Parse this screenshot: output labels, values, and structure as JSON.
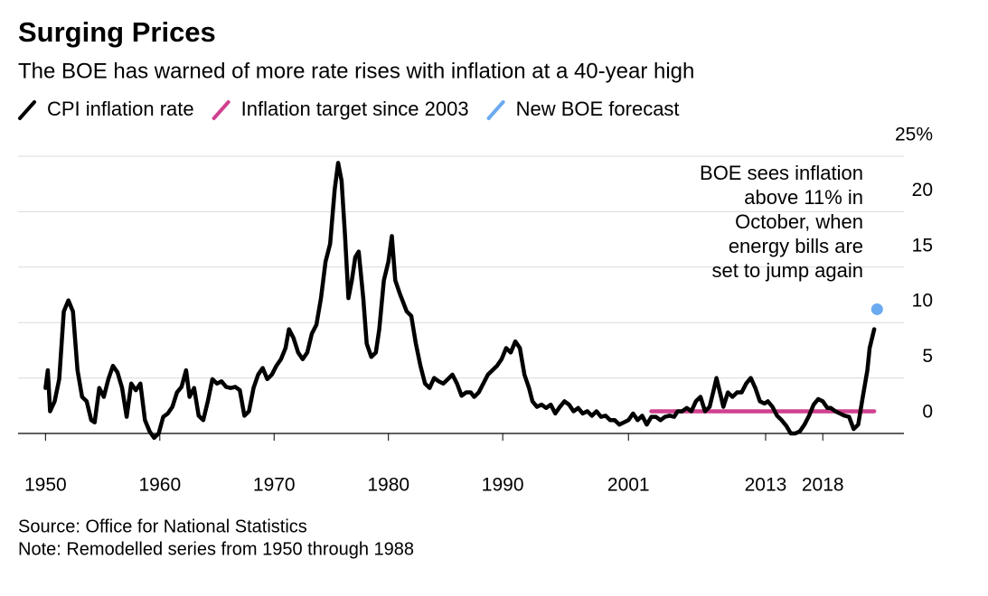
{
  "chart_data": {
    "type": "line",
    "title": "Surging Prices",
    "subtitle": "The BOE has warned of more rate rises with inflation at a 40-year high",
    "annotation": [
      "BOE sees inflation",
      "above 11% in",
      "October, when",
      "energy bills are",
      "set to jump again"
    ],
    "source": "Source: Office for National Statistics",
    "note": "Note: Remodelled series from 1950 through 1988",
    "xlim": [
      1947.6,
      2025.1
    ],
    "xticks": [
      1950,
      1960,
      1970,
      1980,
      1990,
      2001,
      2013,
      2018
    ],
    "ylim": [
      -1.5,
      25
    ],
    "yticks": [
      {
        "value": 25,
        "label": "25%"
      },
      20,
      15,
      10,
      5,
      0
    ],
    "grid": true,
    "series": [
      {
        "name": "CPI inflation rate",
        "color": "#000000",
        "x": [
          1950.0,
          1950.2,
          1950.4,
          1950.8,
          1951.2,
          1951.6,
          1952.0,
          1952.4,
          1952.8,
          1953.2,
          1953.6,
          1954.0,
          1954.3,
          1954.7,
          1955.1,
          1955.5,
          1955.9,
          1956.3,
          1956.7,
          1957.1,
          1957.5,
          1957.9,
          1958.3,
          1958.7,
          1959.1,
          1959.5,
          1959.9,
          1960.3,
          1960.7,
          1961.1,
          1961.5,
          1961.9,
          1962.3,
          1962.6,
          1963.0,
          1963.4,
          1963.8,
          1964.2,
          1964.6,
          1965.0,
          1965.4,
          1965.8,
          1966.2,
          1966.6,
          1967.0,
          1967.4,
          1967.8,
          1968.2,
          1968.6,
          1969.0,
          1969.4,
          1969.8,
          1970.2,
          1970.6,
          1971.0,
          1971.3,
          1971.7,
          1972.1,
          1972.5,
          1972.9,
          1973.3,
          1973.7,
          1974.1,
          1974.5,
          1974.9,
          1975.3,
          1975.6,
          1975.9,
          1976.2,
          1976.5,
          1976.8,
          1977.1,
          1977.4,
          1977.8,
          1978.1,
          1978.5,
          1978.9,
          1979.2,
          1979.6,
          1980.0,
          1980.3,
          1980.6,
          1981.0,
          1981.3,
          1981.6,
          1982.0,
          1982.4,
          1982.8,
          1983.2,
          1983.6,
          1984.0,
          1984.4,
          1984.8,
          1985.2,
          1985.6,
          1986.0,
          1986.4,
          1986.8,
          1987.2,
          1987.5,
          1987.9,
          1988.3,
          1988.7,
          1989.1,
          1989.5,
          1989.9,
          1990.3,
          1990.7,
          1991.1,
          1991.5,
          1991.9,
          1992.3,
          1992.6,
          1993.0,
          1993.4,
          1993.8,
          1994.2,
          1994.6,
          1995.0,
          1995.4,
          1995.8,
          1996.2,
          1996.6,
          1997.0,
          1997.4,
          1997.8,
          1998.2,
          1998.6,
          1999.0,
          1999.4,
          1999.8,
          2000.2,
          2000.6,
          2001.0,
          2001.4,
          2001.8,
          2002.2,
          2002.6,
          2003.0,
          2003.4,
          2003.8,
          2004.2,
          2004.6,
          2005.0,
          2005.3,
          2005.7,
          2006.1,
          2006.5,
          2006.9,
          2007.3,
          2007.7,
          2008.1,
          2008.5,
          2008.7,
          2009.1,
          2009.3,
          2009.7,
          2010.1,
          2010.5,
          2010.9,
          2011.3,
          2011.7,
          2012.1,
          2012.5,
          2012.9,
          2013.2,
          2013.6,
          2014.0,
          2014.4,
          2014.8,
          2015.2,
          2015.6,
          2016.0,
          2016.4,
          2016.8,
          2017.2,
          2017.6,
          2018.0,
          2018.4,
          2018.7,
          2019.1,
          2019.5,
          2019.9,
          2020.3,
          2020.7,
          2021.1,
          2021.5,
          2021.9,
          2022.1,
          2022.5
        ],
        "values": [
          4.1,
          5.7,
          2.0,
          2.9,
          4.9,
          11.0,
          12.0,
          11.0,
          5.7,
          3.3,
          2.9,
          1.2,
          1.0,
          4.1,
          3.3,
          4.9,
          6.1,
          5.5,
          4.1,
          1.5,
          4.5,
          3.9,
          4.5,
          1.2,
          0.2,
          -0.4,
          0,
          1.5,
          1.8,
          2.4,
          3.7,
          4.2,
          5.7,
          3.3,
          4.1,
          1.6,
          1.2,
          2.9,
          4.9,
          4.5,
          4.7,
          4.2,
          4.1,
          4.2,
          3.9,
          1.6,
          2.0,
          4.1,
          5.3,
          5.9,
          4.9,
          5.3,
          6.1,
          6.7,
          7.7,
          9.4,
          8.6,
          7.3,
          6.7,
          7.3,
          9.0,
          9.8,
          12.2,
          15.5,
          17.1,
          22.0,
          24.4,
          22.8,
          17.9,
          12.2,
          13.8,
          15.9,
          16.4,
          12.2,
          8.1,
          6.9,
          7.3,
          9.4,
          13.8,
          15.5,
          17.8,
          13.8,
          12.6,
          11.8,
          11.0,
          10.6,
          8.1,
          6.1,
          4.5,
          4.1,
          5.0,
          4.7,
          4.5,
          4.9,
          5.3,
          4.5,
          3.4,
          3.7,
          3.7,
          3.3,
          3.7,
          4.5,
          5.3,
          5.7,
          6.1,
          6.7,
          7.7,
          7.3,
          8.3,
          7.7,
          5.3,
          4.1,
          2.9,
          2.4,
          2.6,
          2.3,
          2.6,
          1.8,
          2.4,
          2.9,
          2.6,
          2.0,
          2.3,
          1.8,
          2.0,
          1.6,
          2.0,
          1.5,
          1.6,
          1.2,
          1.2,
          0.8,
          1.0,
          1.2,
          1.8,
          1.2,
          1.6,
          0.8,
          1.5,
          1.5,
          1.2,
          1.5,
          1.6,
          1.5,
          2.0,
          2.0,
          2.3,
          2.0,
          2.9,
          3.3,
          2.0,
          2.4,
          4.1,
          5.0,
          3.3,
          2.4,
          3.7,
          3.3,
          3.7,
          3.7,
          4.5,
          5.0,
          4.1,
          2.9,
          2.7,
          2.9,
          2.4,
          1.6,
          1.2,
          0.7,
          0,
          0,
          0.2,
          0.8,
          1.6,
          2.6,
          3.1,
          2.9,
          2.3,
          2.3,
          2.0,
          1.8,
          1.6,
          1.5,
          0.4,
          0.8,
          3.3,
          5.7,
          7.7,
          9.4
        ]
      },
      {
        "name": "Inflation target since 2003",
        "color": "#d0408f",
        "x": [
          2003.0,
          2022.5
        ],
        "values": [
          2,
          2
        ]
      },
      {
        "name": "New BOE forecast",
        "color": "#6aaaf0",
        "x": [
          2022.75
        ],
        "values": [
          11.2
        ]
      }
    ]
  }
}
